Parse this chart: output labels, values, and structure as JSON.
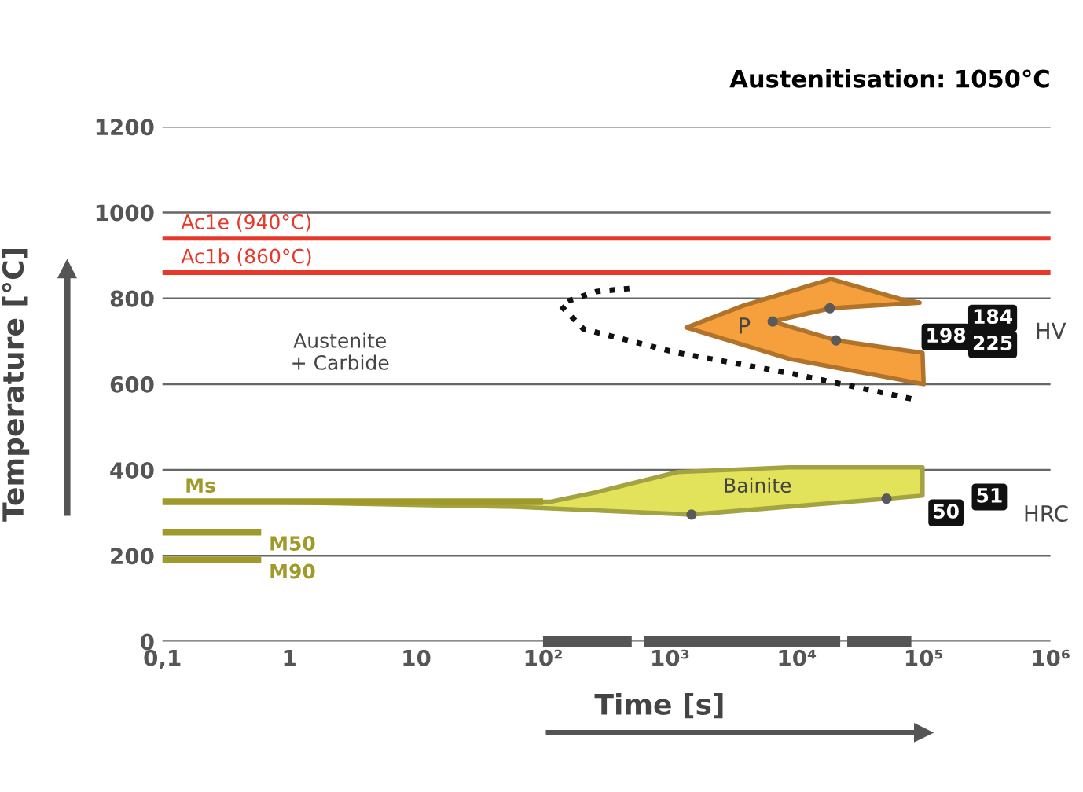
{
  "chart_data": {
    "type": "line",
    "title": "Austenitisation: 1050°C",
    "xlabel": "Time [s]",
    "ylabel": "Temperature [°C]",
    "log": "x",
    "grid": "y",
    "legend": false,
    "xlim": [
      0.1,
      1000000
    ],
    "xticks": [
      {
        "value": 0.1,
        "label": "0,1"
      },
      1,
      10,
      {
        "value": 100,
        "label": "10²"
      },
      {
        "value": 1000,
        "label": "10³"
      },
      {
        "value": 10000,
        "label": "10⁴"
      },
      {
        "value": 100000,
        "label": "10⁵"
      },
      {
        "value": 1000000,
        "label": "10⁶"
      }
    ],
    "ylim": [
      0,
      1200
    ],
    "yticks": [
      0,
      200,
      400,
      600,
      800,
      1000,
      1200
    ],
    "ref_lines": [
      {
        "axis": "y",
        "value": 940,
        "label": "Ac1e (940°C)",
        "color": "#e8382a"
      },
      {
        "axis": "y",
        "value": 860,
        "label": "Ac1b (860°C)",
        "color": "#e8382a"
      }
    ],
    "series": [
      {
        "name": "Ms",
        "color": "#a09a2a",
        "x": [
          0.1,
          100
        ],
        "values": [
          326,
          326
        ]
      },
      {
        "name": "M50",
        "color": "#a09a2a",
        "x": [
          0.1,
          0.6
        ],
        "values": [
          255,
          255
        ]
      },
      {
        "name": "M90",
        "color": "#a09a2a",
        "x": [
          0.1,
          0.6
        ],
        "values": [
          190,
          190
        ]
      },
      {
        "type": "area",
        "color": "#e2e35a",
        "x": [
          0.5,
          115,
          263,
          1150,
          8700,
          98000,
          98000,
          51000,
          1480,
          60,
          0.5
        ],
        "values": [
          326,
          326,
          348,
          395,
          406,
          406,
          340,
          333,
          296,
          314,
          326
        ]
      },
      {
        "type": "area",
        "color": "#f5a03c",
        "x": [
          18600,
          66000,
          93000,
          18600,
          6460,
          20400,
          98000,
          100000,
          8700,
          1350,
          3800,
          18600
        ],
        "values": [
          845,
          798,
          790,
          777,
          746,
          702,
          673,
          600,
          659,
          732,
          783,
          845
        ]
      },
      {
        "type": "line",
        "color": "#111111",
        "line_style": "dotted",
        "x": [
          479,
          263,
          158,
          138,
          209,
          1150,
          8700,
          89000
        ],
        "values": [
          823,
          816,
          794,
          783,
          728,
          673,
          626,
          563
        ]
      },
      {
        "type": "line",
        "color": "#555555",
        "x": [
          100,
          500,
          560,
          630,
          22000,
          23500,
          25000,
          80000
        ],
        "values": [
          0,
          0,
          null,
          0,
          0,
          null,
          0,
          0
        ]
      },
      {
        "type": "scatter",
        "color": "#5a5a5a",
        "marker": "circle",
        "x": [
          6460,
          18200,
          20400,
          1480,
          51000
        ],
        "values": [
          746,
          777,
          702,
          296,
          333
        ]
      }
    ],
    "annotations": [
      "Austenite\n+ Carbide",
      "P",
      "Bainite",
      {
        "text": "198",
        "x": 150000,
        "y": 710
      },
      {
        "text": "184",
        "x": 350000,
        "y": 754
      },
      {
        "text": "225",
        "x": 350000,
        "y": 692
      },
      "HV",
      {
        "text": "50",
        "x": 150000,
        "y": 300
      },
      {
        "text": "51",
        "x": 330000,
        "y": 337
      },
      "HRC"
    ]
  }
}
